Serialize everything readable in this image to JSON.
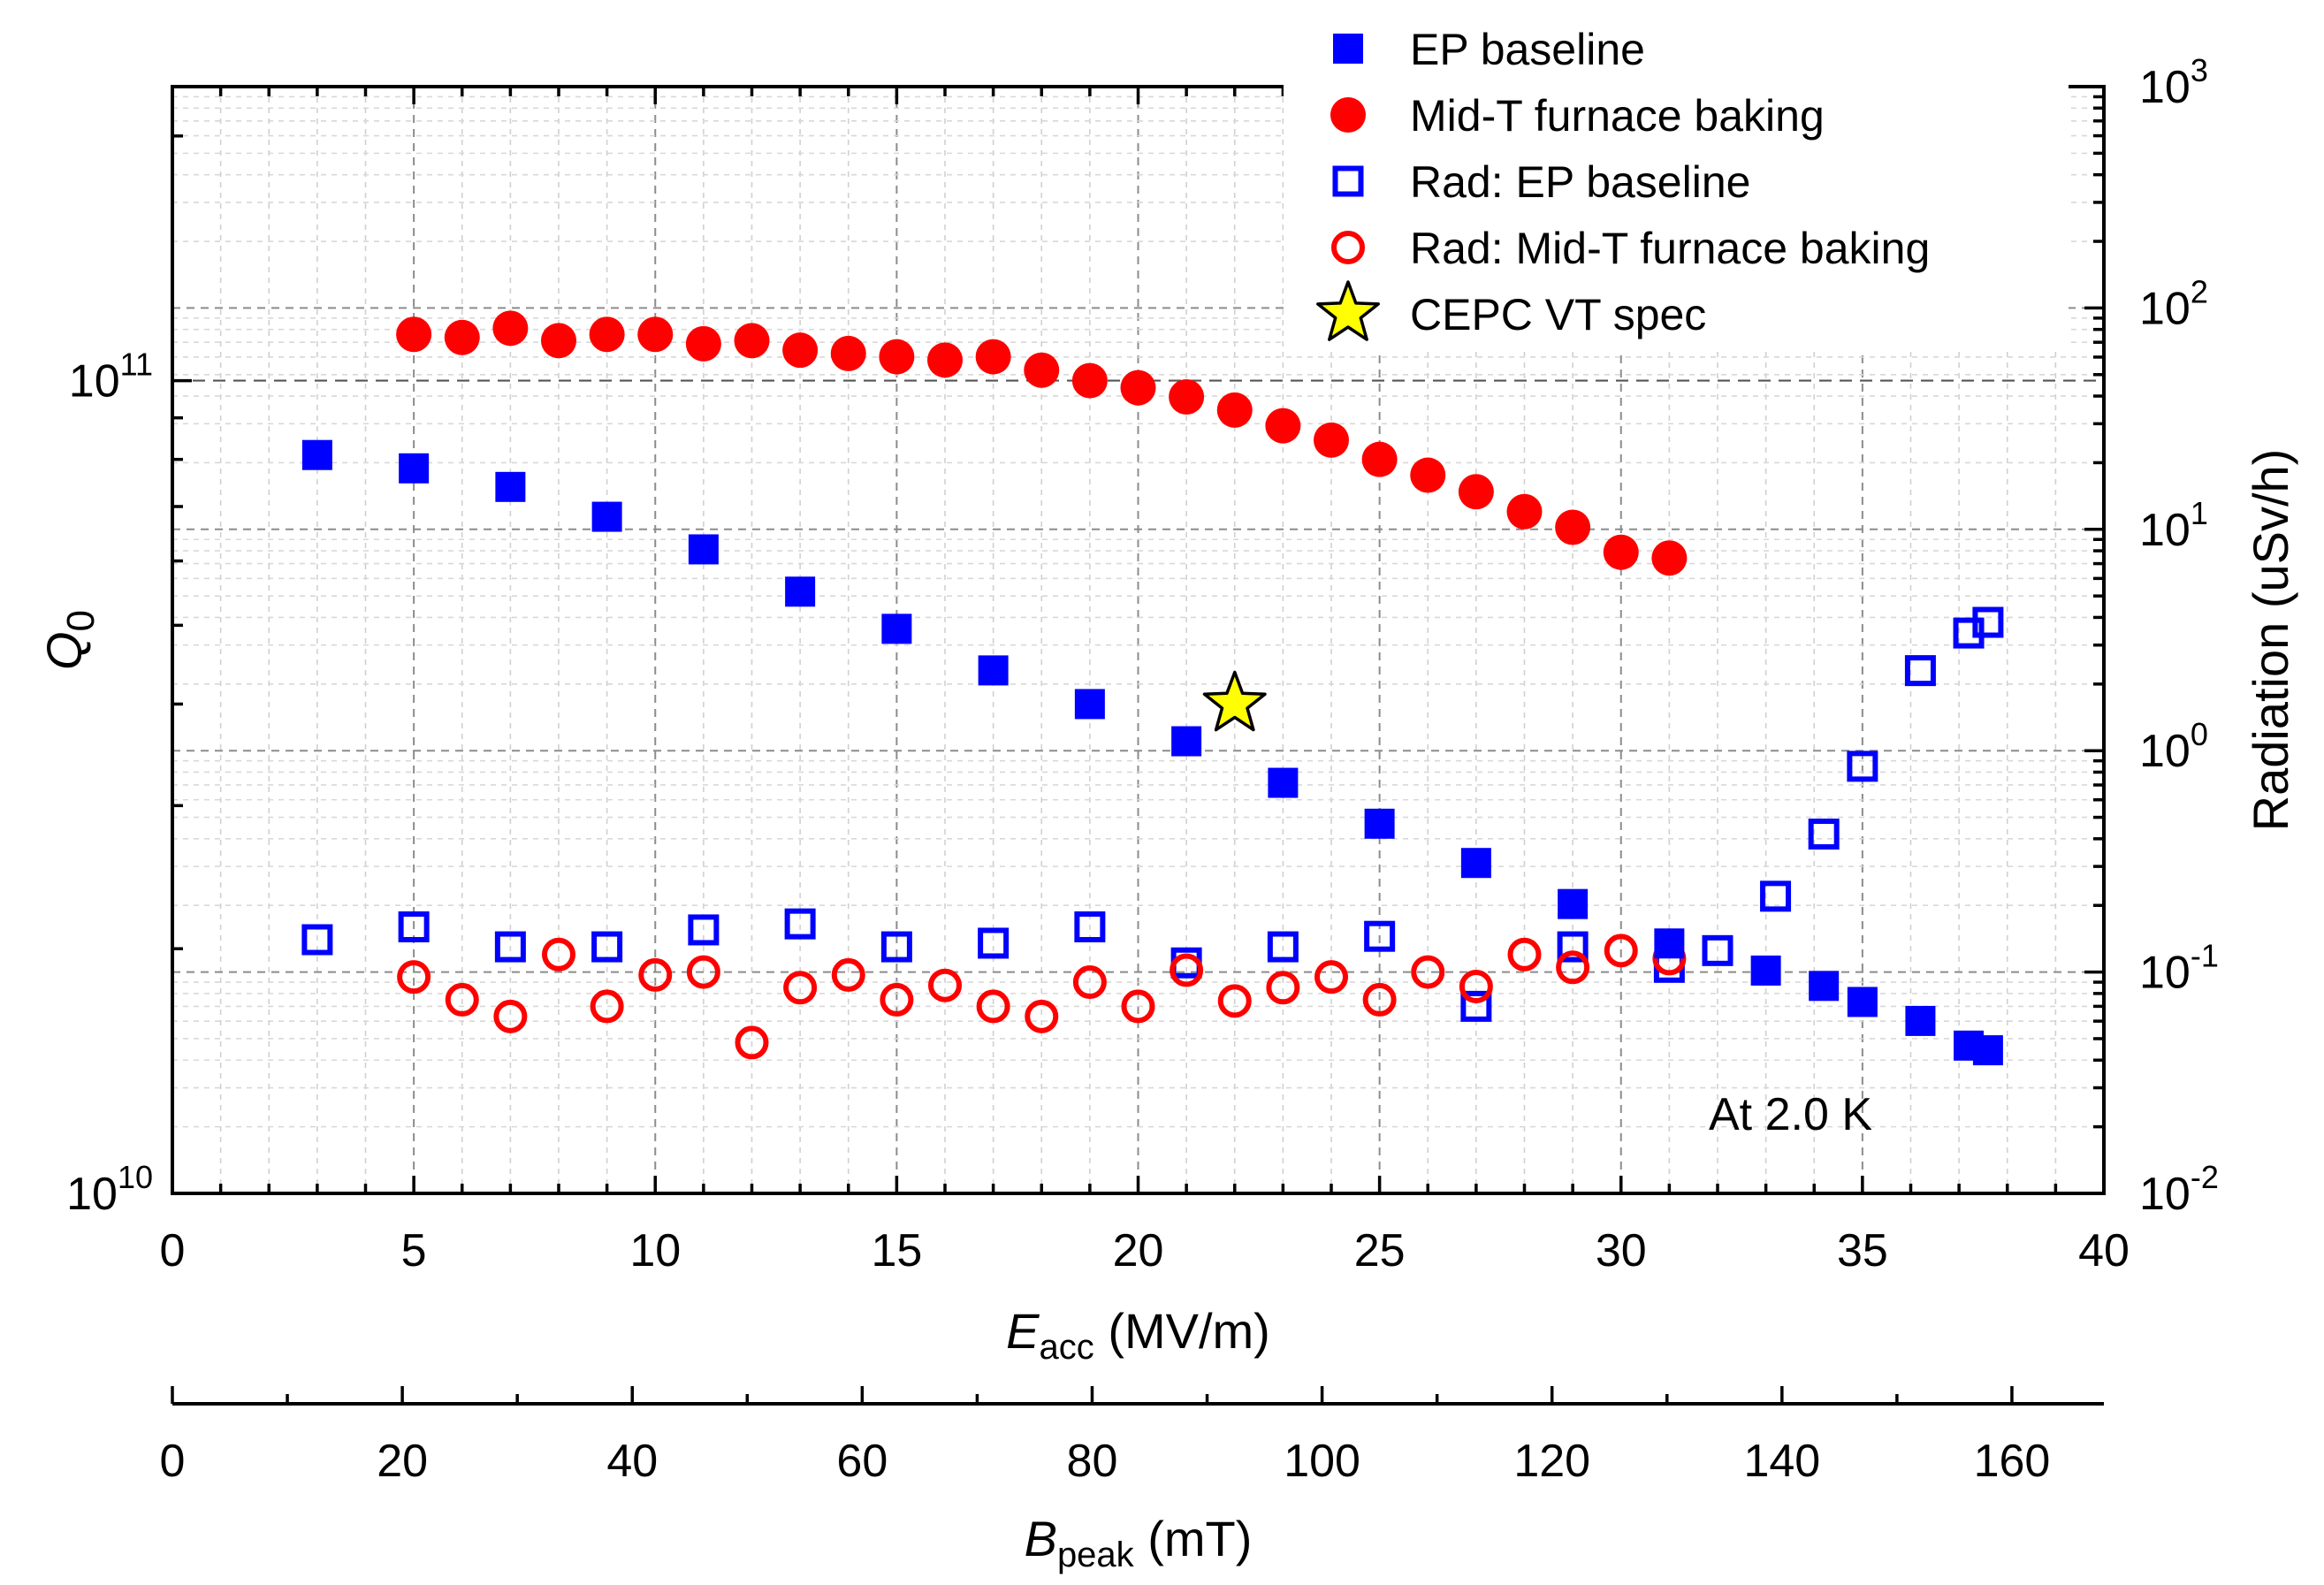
{
  "chart_data": {
    "type": "scatter",
    "annotation": "At 2.0 K",
    "x_axis": {
      "title_main": "E",
      "title_sub": "acc",
      "title_unit": " (MV/m)",
      "range": [
        0,
        40
      ],
      "ticks": [
        0,
        5,
        10,
        15,
        20,
        25,
        30,
        35,
        40
      ],
      "tick_labels": [
        "0",
        "5",
        "10",
        "15",
        "20",
        "25",
        "30",
        "35",
        "40"
      ]
    },
    "x2_axis": {
      "title_main": "B",
      "title_sub": "peak",
      "title_unit": " (mT)",
      "range": [
        0,
        168
      ],
      "ticks": [
        0,
        20,
        40,
        60,
        80,
        100,
        120,
        140,
        160
      ],
      "tick_labels": [
        "0",
        "20",
        "40",
        "60",
        "80",
        "100",
        "120",
        "140",
        "160"
      ]
    },
    "y_axis": {
      "title_main": "Q",
      "title_sub": "0",
      "scale": "log",
      "range": [
        10000000000.0,
        230000000000.0
      ],
      "ticks": [
        10000000000.0,
        100000000000.0
      ],
      "tick_base": [
        "10",
        "10"
      ],
      "tick_exp": [
        "10",
        "11"
      ]
    },
    "y2_axis": {
      "title": "Radiation (uSv/h)",
      "scale": "log",
      "range": [
        0.01,
        1000
      ],
      "ticks": [
        0.01,
        0.1,
        1,
        10,
        100,
        1000
      ],
      "tick_base": [
        "10",
        "10",
        "10",
        "10",
        "10",
        "10"
      ],
      "tick_exp": [
        "-2",
        "-1",
        "0",
        "1",
        "2",
        "3"
      ]
    },
    "series": [
      {
        "name": "EP baseline",
        "axis": "left",
        "marker": "square-filled",
        "color": "#0000ff",
        "x": [
          3,
          5,
          7,
          9,
          11,
          13,
          15,
          17,
          19,
          21,
          23,
          25,
          27,
          29,
          31,
          33,
          34.2,
          35,
          36.2,
          37.2,
          37.6
        ],
        "y": [
          81000000000.0,
          78000000000.0,
          74000000000.0,
          68000000000.0,
          62000000000.0,
          55000000000.0,
          49500000000.0,
          44000000000.0,
          40000000000.0,
          36000000000.0,
          32000000000.0,
          28500000000.0,
          25500000000.0,
          22700000000.0,
          20300000000.0,
          18800000000.0,
          18000000000.0,
          17200000000.0,
          16300000000.0,
          15200000000.0,
          15000000000.0
        ]
      },
      {
        "name": "Mid-T furnace baking",
        "axis": "left",
        "marker": "circle-filled",
        "color": "#ff0000",
        "x": [
          5,
          6,
          7,
          8,
          9,
          10,
          11,
          12,
          13,
          14,
          15,
          16,
          17,
          18,
          19,
          20,
          21,
          22,
          23,
          24,
          25,
          26,
          27,
          28,
          29,
          30,
          31
        ],
        "y": [
          114000000000.0,
          113000000000.0,
          116000000000.0,
          112000000000.0,
          114000000000.0,
          114000000000.0,
          111000000000.0,
          112000000000.0,
          109000000000.0,
          108000000000.0,
          107000000000.0,
          106000000000.0,
          107000000000.0,
          103000000000.0,
          100000000000.0,
          98000000000.0,
          95500000000.0,
          92000000000.0,
          88000000000.0,
          84500000000.0,
          80000000000.0,
          76500000000.0,
          73000000000.0,
          69000000000.0,
          66000000000.0,
          61500000000.0,
          60500000000.0
        ]
      },
      {
        "name": "Rad: EP baseline",
        "axis": "right",
        "marker": "square-open",
        "color": "#0000ff",
        "x": [
          3,
          5,
          7,
          9,
          11,
          13,
          15,
          17,
          19,
          21,
          23,
          25,
          27,
          29,
          31,
          32,
          33.2,
          34.2,
          35,
          36.2,
          37.2,
          37.6
        ],
        "y": [
          0.14,
          0.16,
          0.13,
          0.13,
          0.155,
          0.165,
          0.13,
          0.135,
          0.16,
          0.11,
          0.13,
          0.145,
          0.07,
          0.13,
          0.105,
          0.125,
          0.22,
          0.42,
          0.85,
          2.3,
          3.4,
          3.8
        ]
      },
      {
        "name": "Rad: Mid-T furnace baking",
        "axis": "right",
        "marker": "circle-open",
        "color": "#ff0000",
        "x": [
          5,
          6,
          7,
          8,
          9,
          10,
          11,
          12,
          13,
          14,
          15,
          16,
          17,
          18,
          19,
          20,
          21,
          22,
          23,
          24,
          25,
          26,
          27,
          28,
          29,
          30,
          31
        ],
        "y": [
          0.095,
          0.075,
          0.063,
          0.12,
          0.07,
          0.097,
          0.1,
          0.048,
          0.085,
          0.097,
          0.075,
          0.087,
          0.07,
          0.063,
          0.09,
          0.07,
          0.102,
          0.074,
          0.085,
          0.095,
          0.075,
          0.1,
          0.086,
          0.12,
          0.105,
          0.125,
          0.115
        ]
      },
      {
        "name": "CEPC VT spec",
        "axis": "left",
        "marker": "star",
        "color": "#ffff00",
        "x": [
          22
        ],
        "y": [
          40000000000.0
        ]
      }
    ],
    "grid": true,
    "reference_line": {
      "axis": "left",
      "y": 100000000000.0,
      "style": "dashed"
    },
    "legend_position": "top-right"
  }
}
